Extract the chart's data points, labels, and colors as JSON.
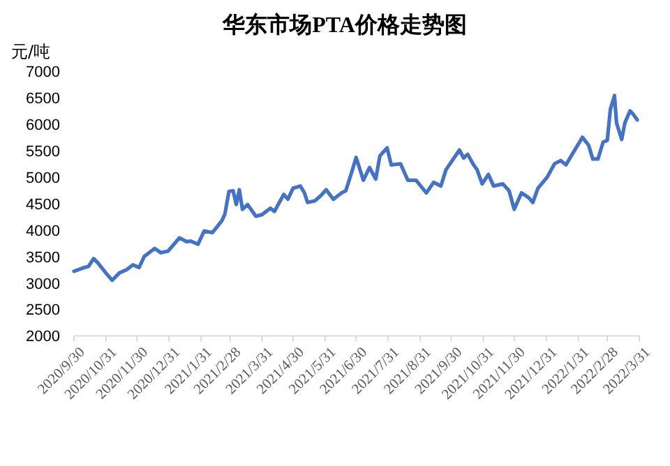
{
  "chart_data": {
    "type": "line",
    "title": "华东市场PTA价格走势图",
    "ylabel": "元/吨",
    "x": [
      "2020-09-30",
      "2020-10-10",
      "2020-10-14",
      "2020-10-19",
      "2020-10-23",
      "2020-11-01",
      "2020-11-06",
      "2020-11-13",
      "2020-11-20",
      "2020-11-26",
      "2020-12-02",
      "2020-12-07",
      "2020-12-17",
      "2020-12-23",
      "2020-12-30",
      "2021-01-10",
      "2021-01-17",
      "2021-01-21",
      "2021-01-28",
      "2021-02-03",
      "2021-02-11",
      "2021-02-20",
      "2021-02-23",
      "2021-02-27",
      "2021-03-03",
      "2021-03-06",
      "2021-03-09",
      "2021-03-12",
      "2021-03-17",
      "2021-03-25",
      "2021-03-31",
      "2021-04-08",
      "2021-04-12",
      "2021-04-15",
      "2021-04-21",
      "2021-04-25",
      "2021-04-30",
      "2021-05-07",
      "2021-05-11",
      "2021-05-14",
      "2021-05-21",
      "2021-05-27",
      "2021-06-01",
      "2021-06-08",
      "2021-06-16",
      "2021-06-20",
      "2021-06-26",
      "2021-06-30",
      "2021-07-07",
      "2021-07-13",
      "2021-07-19",
      "2021-07-23",
      "2021-07-30",
      "2021-08-03",
      "2021-08-12",
      "2021-08-19",
      "2021-08-27",
      "2021-09-06",
      "2021-09-13",
      "2021-09-20",
      "2021-09-25",
      "2021-10-01",
      "2021-10-08",
      "2021-10-12",
      "2021-10-16",
      "2021-10-21",
      "2021-10-25",
      "2021-10-30",
      "2021-11-05",
      "2021-11-10",
      "2021-11-19",
      "2021-11-25",
      "2021-11-30",
      "2021-12-07",
      "2021-12-14",
      "2021-12-18",
      "2021-12-23",
      "2022-01-01",
      "2022-01-08",
      "2022-01-14",
      "2022-01-19",
      "2022-01-26",
      "2022-02-04",
      "2022-02-10",
      "2022-02-14",
      "2022-02-19",
      "2022-02-24",
      "2022-02-28",
      "2022-03-03",
      "2022-03-07",
      "2022-03-09",
      "2022-03-14",
      "2022-03-17",
      "2022-03-22",
      "2022-03-25",
      "2022-03-29"
    ],
    "series": [
      {
        "color": "#4472c4",
        "values": [
          3220,
          3290,
          3310,
          3460,
          3380,
          3160,
          3050,
          3190,
          3250,
          3340,
          3290,
          3500,
          3650,
          3570,
          3600,
          3850,
          3780,
          3790,
          3730,
          3980,
          3950,
          4170,
          4300,
          4730,
          4740,
          4480,
          4760,
          4390,
          4480,
          4260,
          4290,
          4410,
          4350,
          4460,
          4670,
          4580,
          4790,
          4830,
          4700,
          4520,
          4550,
          4650,
          4760,
          4580,
          4700,
          4740,
          5110,
          5370,
          4940,
          5180,
          4960,
          5400,
          5550,
          5230,
          5250,
          4940,
          4940,
          4700,
          4900,
          4830,
          5140,
          5310,
          5510,
          5360,
          5430,
          5250,
          5140,
          4870,
          5050,
          4830,
          4870,
          4740,
          4390,
          4700,
          4610,
          4520,
          4790,
          5000,
          5250,
          5310,
          5230,
          5460,
          5750,
          5600,
          5340,
          5340,
          5660,
          5690,
          6280,
          6540,
          6020,
          5710,
          6020,
          6250,
          6190,
          6080
        ]
      }
    ],
    "xlim": [
      "2020-09-30",
      "2022-03-31"
    ],
    "xticks": [
      {
        "value": "2020-09-30",
        "label": "2020/9/30"
      },
      {
        "value": "2020-10-31",
        "label": "2020/10/31"
      },
      {
        "value": "2020-11-30",
        "label": "2020/11/30"
      },
      {
        "value": "2020-12-31",
        "label": "2020/12/31"
      },
      {
        "value": "2021-01-31",
        "label": "2021/1/31"
      },
      {
        "value": "2021-02-28",
        "label": "2021/2/28"
      },
      {
        "value": "2021-03-31",
        "label": "2021/3/31"
      },
      {
        "value": "2021-04-30",
        "label": "2021/4/30"
      },
      {
        "value": "2021-05-31",
        "label": "2021/5/31"
      },
      {
        "value": "2021-06-30",
        "label": "2021/6/30"
      },
      {
        "value": "2021-07-31",
        "label": "2021/7/31"
      },
      {
        "value": "2021-08-31",
        "label": "2021/8/31"
      },
      {
        "value": "2021-09-30",
        "label": "2021/9/30"
      },
      {
        "value": "2021-10-31",
        "label": "2021/10/31"
      },
      {
        "value": "2021-11-30",
        "label": "2021/11/30"
      },
      {
        "value": "2021-12-31",
        "label": "2021/12/31"
      },
      {
        "value": "2022-01-31",
        "label": "2022/1/31"
      },
      {
        "value": "2022-02-28",
        "label": "2022/2/28"
      },
      {
        "value": "2022-03-31",
        "label": "2022/3/31"
      }
    ],
    "ylim": [
      2000,
      7000
    ],
    "yticks": [
      2000,
      2500,
      3000,
      3500,
      4000,
      4500,
      5000,
      5500,
      6000,
      6500,
      7000
    ],
    "grid": false,
    "marker": "none",
    "line_style": "solid"
  }
}
